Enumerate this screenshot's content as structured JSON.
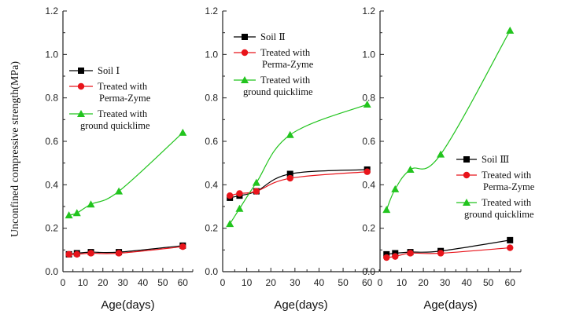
{
  "ylabel": "Unconfined compressive strength(MPa)",
  "colors": {
    "soil": "#000000",
    "perma": "#e8141b",
    "lime": "#22c41e"
  },
  "chart_data": [
    {
      "type": "line",
      "xlabel": "Age(days)",
      "xlim": [
        0,
        65
      ],
      "ylim": [
        0,
        1.2
      ],
      "xticks": [
        "0",
        "10",
        "20",
        "30",
        "40",
        "50",
        "60"
      ],
      "yticks": [
        "0.0",
        "0.2",
        "0.4",
        "0.6",
        "0.8",
        "1.0",
        "1.2"
      ],
      "legend_position": "middle-left",
      "series": [
        {
          "name": "Soil Ⅰ",
          "legend": [
            "Soil Ⅰ"
          ],
          "x": [
            3,
            7,
            14,
            28,
            60
          ],
          "y": [
            0.08,
            0.085,
            0.09,
            0.09,
            0.12
          ]
        },
        {
          "name": "Treated with Perma-Zyme",
          "legend": [
            "Treated with",
            "Perma-Zyme"
          ],
          "x": [
            3,
            7,
            14,
            28,
            60
          ],
          "y": [
            0.08,
            0.08,
            0.085,
            0.085,
            0.115
          ]
        },
        {
          "name": "Treated with ground quicklime",
          "legend": [
            "Treated with",
            "ground quicklime"
          ],
          "x": [
            3,
            7,
            14,
            28,
            60
          ],
          "y": [
            0.26,
            0.27,
            0.31,
            0.37,
            0.64
          ]
        }
      ]
    },
    {
      "type": "line",
      "xlabel": "Age(days)",
      "xlim": [
        0,
        65
      ],
      "ylim": [
        0,
        1.2
      ],
      "xticks": [
        "0",
        "10",
        "20",
        "30",
        "40",
        "50",
        "60"
      ],
      "yticks": [
        "0.0",
        "0.2",
        "0.4",
        "0.6",
        "0.8",
        "1.0",
        "1.2"
      ],
      "legend_position": "top-left",
      "series": [
        {
          "name": "Soil Ⅱ",
          "legend": [
            "Soil Ⅱ"
          ],
          "x": [
            3,
            7,
            14,
            28,
            60
          ],
          "y": [
            0.34,
            0.35,
            0.37,
            0.45,
            0.47
          ]
        },
        {
          "name": "Treated with Perma-Zyme",
          "legend": [
            "Treated with",
            "Perma-Zyme"
          ],
          "x": [
            3,
            7,
            14,
            28,
            60
          ],
          "y": [
            0.35,
            0.36,
            0.37,
            0.43,
            0.46
          ]
        },
        {
          "name": "Treated with ground quicklime",
          "legend": [
            "Treated with",
            "ground quicklime"
          ],
          "x": [
            3,
            7,
            14,
            28,
            60
          ],
          "y": [
            0.22,
            0.29,
            0.41,
            0.63,
            0.77
          ]
        }
      ]
    },
    {
      "type": "line",
      "xlabel": "Age(days)",
      "xlim": [
        0,
        65
      ],
      "ylim": [
        0,
        1.2
      ],
      "xticks": [
        "0",
        "10",
        "20",
        "30",
        "40",
        "50",
        "60"
      ],
      "yticks": [
        "0.0",
        "0.2",
        "0.4",
        "0.6",
        "0.8",
        "1.0",
        "1.2"
      ],
      "legend_position": "middle-right",
      "series": [
        {
          "name": "Soil Ⅲ",
          "legend": [
            "Soil Ⅲ"
          ],
          "x": [
            3,
            7,
            14,
            28,
            60
          ],
          "y": [
            0.08,
            0.085,
            0.09,
            0.095,
            0.145
          ]
        },
        {
          "name": "Treated with Perma-Zyme",
          "legend": [
            "Treated with",
            "Perma-Zyme"
          ],
          "x": [
            3,
            7,
            14,
            28,
            60
          ],
          "y": [
            0.065,
            0.07,
            0.085,
            0.085,
            0.11
          ]
        },
        {
          "name": "Treated with ground quicklime",
          "legend": [
            "Treated with",
            "ground quicklime"
          ],
          "x": [
            3,
            7,
            14,
            28,
            60
          ],
          "y": [
            0.285,
            0.38,
            0.47,
            0.54,
            1.11
          ]
        }
      ]
    }
  ]
}
